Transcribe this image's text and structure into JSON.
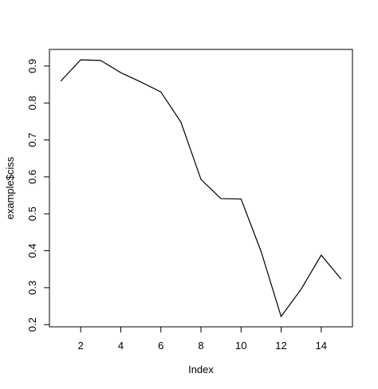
{
  "chart_data": {
    "type": "line",
    "title": "",
    "xlabel": "Index",
    "ylabel": "example$ciss",
    "x": [
      1,
      2,
      3,
      4,
      5,
      6,
      7,
      8,
      9,
      10,
      11,
      12,
      13,
      14,
      15
    ],
    "series": [
      {
        "values": [
          0.859,
          0.917,
          0.915,
          0.882,
          0.857,
          0.83,
          0.748,
          0.593,
          0.541,
          0.54,
          0.398,
          0.222,
          0.296,
          0.388,
          0.323
        ]
      }
    ],
    "xlim": [
      0.44,
      15.56
    ],
    "ylim": [
      0.194,
      0.945
    ],
    "xticks": [
      "2",
      "4",
      "6",
      "8",
      "10",
      "12",
      "14"
    ],
    "yticks": [
      "0.2",
      "0.3",
      "0.4",
      "0.5",
      "0.6",
      "0.7",
      "0.8",
      "0.9"
    ],
    "line_color": "#000000",
    "grid": false,
    "legend": "none"
  }
}
